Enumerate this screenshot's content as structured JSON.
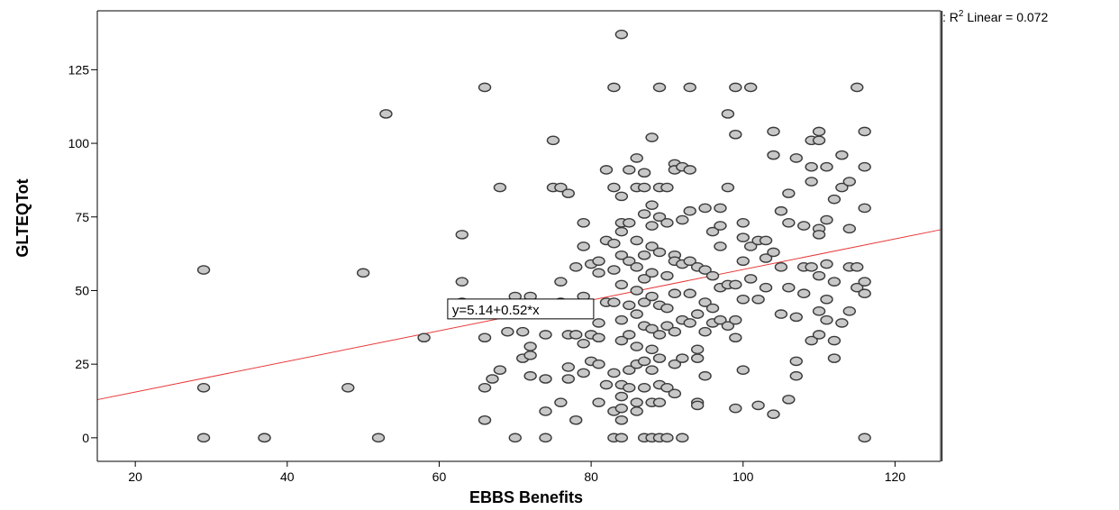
{
  "chart_data": {
    "type": "scatter",
    "xlabel": "EBBS Benefits",
    "ylabel": "GLTEQTot",
    "xlim": [
      15,
      126
    ],
    "ylim": [
      -8,
      145
    ],
    "xticks": [
      20,
      40,
      60,
      80,
      100,
      120
    ],
    "yticks": [
      0,
      25,
      50,
      75,
      100,
      125
    ],
    "grid": false,
    "legend": {
      "placement": "top-right",
      "prefix": ": ",
      "r2_text": "R",
      "r2_sup": "2",
      "linear_text": " Linear = 0.072"
    },
    "fit_line": {
      "intercept": 5.14,
      "slope": 0.52,
      "equation": "y=5.14+0.52*x",
      "color": "#e83a3a",
      "x_range": [
        15,
        126
      ],
      "label_anchor_x": 61,
      "label_anchor_y": 41
    },
    "marker": {
      "fill": "#c8c8c8",
      "stroke": "#3a3a3a"
    },
    "points": [
      [
        29,
        57
      ],
      [
        29,
        17
      ],
      [
        29,
        0
      ],
      [
        37,
        0
      ],
      [
        37,
        0
      ],
      [
        48,
        17
      ],
      [
        50,
        56
      ],
      [
        52,
        0
      ],
      [
        53,
        110
      ],
      [
        58,
        34
      ],
      [
        63,
        69
      ],
      [
        63,
        53
      ],
      [
        63,
        46
      ],
      [
        63,
        44
      ],
      [
        66,
        119
      ],
      [
        66,
        34
      ],
      [
        66,
        17
      ],
      [
        66,
        6
      ],
      [
        67,
        20
      ],
      [
        68,
        85
      ],
      [
        68,
        23
      ],
      [
        69,
        36
      ],
      [
        70,
        48
      ],
      [
        70,
        0
      ],
      [
        71,
        36
      ],
      [
        71,
        27
      ],
      [
        72,
        48
      ],
      [
        72,
        44
      ],
      [
        72,
        31
      ],
      [
        72,
        28
      ],
      [
        72,
        21
      ],
      [
        74,
        35
      ],
      [
        74,
        20
      ],
      [
        74,
        9
      ],
      [
        74,
        0
      ],
      [
        75,
        101
      ],
      [
        75,
        85
      ],
      [
        76,
        85
      ],
      [
        76,
        53
      ],
      [
        76,
        46
      ],
      [
        76,
        12
      ],
      [
        77,
        83
      ],
      [
        77,
        35
      ],
      [
        77,
        24
      ],
      [
        77,
        20
      ],
      [
        78,
        58
      ],
      [
        78,
        35
      ],
      [
        78,
        6
      ],
      [
        79,
        73
      ],
      [
        79,
        65
      ],
      [
        79,
        48
      ],
      [
        79,
        32
      ],
      [
        79,
        22
      ],
      [
        80,
        59
      ],
      [
        80,
        35
      ],
      [
        80,
        26
      ],
      [
        81,
        60
      ],
      [
        81,
        56
      ],
      [
        81,
        39
      ],
      [
        81,
        34
      ],
      [
        81,
        25
      ],
      [
        81,
        12
      ],
      [
        82,
        91
      ],
      [
        82,
        67
      ],
      [
        82,
        46
      ],
      [
        82,
        18
      ],
      [
        83,
        119
      ],
      [
        83,
        85
      ],
      [
        83,
        66
      ],
      [
        83,
        57
      ],
      [
        83,
        46
      ],
      [
        83,
        22
      ],
      [
        83,
        9
      ],
      [
        83,
        0
      ],
      [
        84,
        137
      ],
      [
        84,
        82
      ],
      [
        84,
        73
      ],
      [
        84,
        70
      ],
      [
        84,
        62
      ],
      [
        84,
        52
      ],
      [
        84,
        40
      ],
      [
        84,
        33
      ],
      [
        84,
        18
      ],
      [
        84,
        14
      ],
      [
        84,
        10
      ],
      [
        84,
        6
      ],
      [
        84,
        0
      ],
      [
        85,
        91
      ],
      [
        85,
        73
      ],
      [
        85,
        60
      ],
      [
        85,
        45
      ],
      [
        85,
        35
      ],
      [
        85,
        23
      ],
      [
        85,
        17
      ],
      [
        86,
        95
      ],
      [
        86,
        85
      ],
      [
        86,
        67
      ],
      [
        86,
        58
      ],
      [
        86,
        50
      ],
      [
        86,
        42
      ],
      [
        86,
        31
      ],
      [
        86,
        25
      ],
      [
        86,
        12
      ],
      [
        86,
        9
      ],
      [
        87,
        90
      ],
      [
        87,
        85
      ],
      [
        87,
        76
      ],
      [
        87,
        62
      ],
      [
        87,
        54
      ],
      [
        87,
        46
      ],
      [
        87,
        38
      ],
      [
        87,
        26
      ],
      [
        87,
        17
      ],
      [
        87,
        0
      ],
      [
        88,
        102
      ],
      [
        88,
        79
      ],
      [
        88,
        72
      ],
      [
        88,
        65
      ],
      [
        88,
        56
      ],
      [
        88,
        48
      ],
      [
        88,
        37
      ],
      [
        88,
        30
      ],
      [
        88,
        23
      ],
      [
        88,
        12
      ],
      [
        88,
        0
      ],
      [
        89,
        119
      ],
      [
        89,
        85
      ],
      [
        89,
        75
      ],
      [
        89,
        63
      ],
      [
        89,
        45
      ],
      [
        89,
        35
      ],
      [
        89,
        27
      ],
      [
        89,
        18
      ],
      [
        89,
        12
      ],
      [
        89,
        0
      ],
      [
        90,
        85
      ],
      [
        90,
        73
      ],
      [
        90,
        55
      ],
      [
        90,
        44
      ],
      [
        90,
        38
      ],
      [
        90,
        17
      ],
      [
        90,
        0
      ],
      [
        91,
        93
      ],
      [
        91,
        91
      ],
      [
        91,
        62
      ],
      [
        91,
        60
      ],
      [
        91,
        49
      ],
      [
        91,
        36
      ],
      [
        91,
        25
      ],
      [
        91,
        15
      ],
      [
        92,
        92
      ],
      [
        92,
        74
      ],
      [
        92,
        59
      ],
      [
        92,
        40
      ],
      [
        92,
        27
      ],
      [
        92,
        0
      ],
      [
        93,
        119
      ],
      [
        93,
        91
      ],
      [
        93,
        77
      ],
      [
        93,
        60
      ],
      [
        93,
        49
      ],
      [
        93,
        39
      ],
      [
        94,
        58
      ],
      [
        94,
        42
      ],
      [
        94,
        30
      ],
      [
        94,
        27
      ],
      [
        94,
        12
      ],
      [
        94,
        11
      ],
      [
        95,
        78
      ],
      [
        95,
        57
      ],
      [
        95,
        46
      ],
      [
        95,
        36
      ],
      [
        95,
        21
      ],
      [
        96,
        70
      ],
      [
        96,
        55
      ],
      [
        96,
        44
      ],
      [
        96,
        39
      ],
      [
        97,
        78
      ],
      [
        97,
        72
      ],
      [
        97,
        65
      ],
      [
        97,
        51
      ],
      [
        97,
        40
      ],
      [
        98,
        110
      ],
      [
        98,
        85
      ],
      [
        98,
        52
      ],
      [
        98,
        38
      ],
      [
        99,
        119
      ],
      [
        99,
        103
      ],
      [
        99,
        52
      ],
      [
        99,
        40
      ],
      [
        99,
        34
      ],
      [
        99,
        10
      ],
      [
        100,
        73
      ],
      [
        100,
        68
      ],
      [
        100,
        60
      ],
      [
        100,
        47
      ],
      [
        100,
        23
      ],
      [
        101,
        119
      ],
      [
        101,
        65
      ],
      [
        101,
        54
      ],
      [
        102,
        67
      ],
      [
        102,
        47
      ],
      [
        102,
        11
      ],
      [
        103,
        67
      ],
      [
        103,
        61
      ],
      [
        103,
        51
      ],
      [
        104,
        104
      ],
      [
        104,
        96
      ],
      [
        104,
        63
      ],
      [
        104,
        8
      ],
      [
        105,
        77
      ],
      [
        105,
        58
      ],
      [
        105,
        42
      ],
      [
        106,
        83
      ],
      [
        106,
        73
      ],
      [
        106,
        51
      ],
      [
        106,
        13
      ],
      [
        107,
        95
      ],
      [
        107,
        41
      ],
      [
        107,
        26
      ],
      [
        107,
        21
      ],
      [
        108,
        72
      ],
      [
        108,
        58
      ],
      [
        108,
        49
      ],
      [
        109,
        101
      ],
      [
        109,
        92
      ],
      [
        109,
        87
      ],
      [
        109,
        58
      ],
      [
        109,
        33
      ],
      [
        110,
        104
      ],
      [
        110,
        101
      ],
      [
        110,
        71
      ],
      [
        110,
        69
      ],
      [
        110,
        55
      ],
      [
        110,
        43
      ],
      [
        110,
        35
      ],
      [
        111,
        92
      ],
      [
        111,
        74
      ],
      [
        111,
        59
      ],
      [
        111,
        47
      ],
      [
        111,
        40
      ],
      [
        112,
        81
      ],
      [
        112,
        53
      ],
      [
        112,
        33
      ],
      [
        112,
        27
      ],
      [
        113,
        96
      ],
      [
        113,
        85
      ],
      [
        113,
        39
      ],
      [
        114,
        87
      ],
      [
        114,
        71
      ],
      [
        114,
        58
      ],
      [
        114,
        43
      ],
      [
        115,
        119
      ],
      [
        115,
        58
      ],
      [
        115,
        51
      ],
      [
        116,
        104
      ],
      [
        116,
        92
      ],
      [
        116,
        78
      ],
      [
        116,
        53
      ],
      [
        116,
        49
      ],
      [
        116,
        0
      ]
    ]
  }
}
